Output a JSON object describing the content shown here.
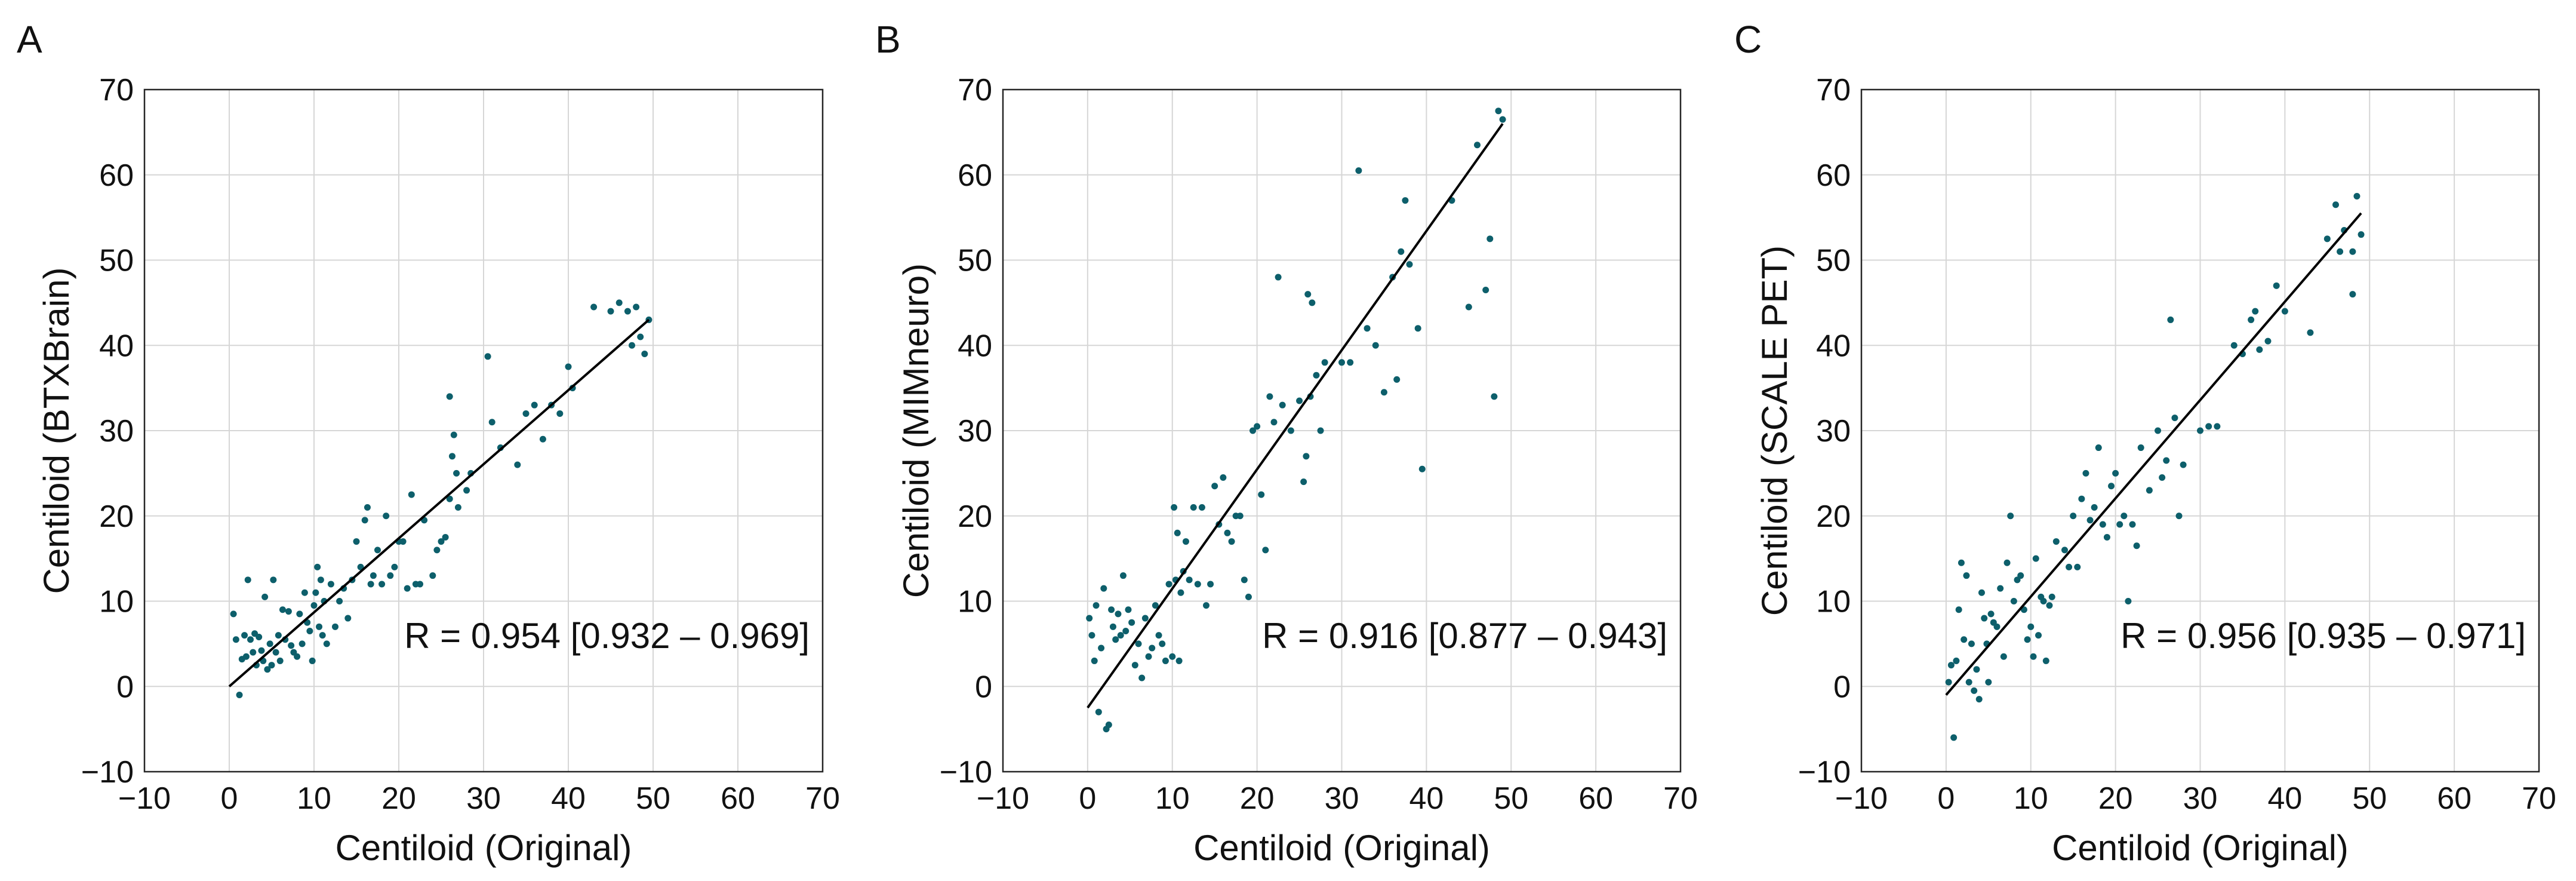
{
  "figure": {
    "panels": [
      {
        "letter": "A",
        "ylabel": "Centiloid (BTXBrain)",
        "xlabel": "Centiloid (Original)",
        "r_text": "R = 0.954 [0.932 – 0.969]"
      },
      {
        "letter": "B",
        "ylabel": "Centiloid (MIMneuro)",
        "xlabel": "Centiloid (Original)",
        "r_text": "R = 0.916 [0.877 – 0.943]"
      },
      {
        "letter": "C",
        "ylabel": "Centiloid (SCALE PET)",
        "xlabel": "Centiloid (Original)",
        "r_text": "R = 0.956 [0.935 – 0.971]"
      }
    ],
    "point_color": "#0d5f6b",
    "line_color": "#000000"
  },
  "chart_data": [
    {
      "type": "scatter",
      "panel": "A",
      "title": "",
      "xlabel": "Centiloid (Original)",
      "ylabel": "Centiloid (BTXBrain)",
      "xlim": [
        -10,
        70
      ],
      "ylim": [
        -10,
        70
      ],
      "xticks": [
        -10,
        0,
        10,
        20,
        30,
        40,
        50,
        60,
        70
      ],
      "yticks": [
        -10,
        0,
        10,
        20,
        30,
        40,
        50,
        60,
        70
      ],
      "xtick_labels": [
        "−10",
        "0",
        "10",
        "20",
        "30",
        "40",
        "50",
        "60",
        "70"
      ],
      "ytick_labels": [
        "−10",
        "0",
        "10",
        "20",
        "30",
        "40",
        "50",
        "60",
        "70"
      ],
      "grid": true,
      "annotation": "R = 0.954 [0.932 – 0.969]",
      "fit_line": {
        "x": [
          0,
          49.5
        ],
        "y": [
          0,
          43
        ]
      },
      "points": [
        [
          0.5,
          8.5
        ],
        [
          0.8,
          5.5
        ],
        [
          1.2,
          -1
        ],
        [
          1.5,
          3.2
        ],
        [
          1.8,
          6
        ],
        [
          2,
          3.5
        ],
        [
          2.2,
          12.5
        ],
        [
          2.5,
          5.5
        ],
        [
          2.8,
          4
        ],
        [
          3,
          6.2
        ],
        [
          3.2,
          2.5
        ],
        [
          3.5,
          5.8
        ],
        [
          3.8,
          4.2
        ],
        [
          4,
          3
        ],
        [
          4.2,
          10.5
        ],
        [
          4.5,
          2
        ],
        [
          4.8,
          5
        ],
        [
          5,
          2.5
        ],
        [
          5.2,
          12.5
        ],
        [
          5.5,
          4
        ],
        [
          5.8,
          6
        ],
        [
          6,
          3
        ],
        [
          6.3,
          9
        ],
        [
          6.6,
          5.5
        ],
        [
          7,
          8.8
        ],
        [
          7.3,
          4.8
        ],
        [
          7.6,
          4
        ],
        [
          8,
          3.5
        ],
        [
          8.3,
          8.5
        ],
        [
          8.6,
          5
        ],
        [
          8.9,
          11
        ],
        [
          9.2,
          7.5
        ],
        [
          9.5,
          6.5
        ],
        [
          9.8,
          3
        ],
        [
          10,
          9.5
        ],
        [
          10.2,
          11
        ],
        [
          10.4,
          14
        ],
        [
          10.6,
          7
        ],
        [
          10.8,
          12.5
        ],
        [
          11,
          6
        ],
        [
          11.2,
          10
        ],
        [
          11.5,
          5
        ],
        [
          12,
          12
        ],
        [
          12.5,
          7
        ],
        [
          13,
          10
        ],
        [
          13.5,
          11.5
        ],
        [
          14,
          8
        ],
        [
          14.5,
          12.5
        ],
        [
          15,
          17
        ],
        [
          15.5,
          14
        ],
        [
          16,
          19.5
        ],
        [
          16.3,
          21
        ],
        [
          16.7,
          12
        ],
        [
          17,
          13
        ],
        [
          17.5,
          16
        ],
        [
          18,
          12
        ],
        [
          18.5,
          20
        ],
        [
          19,
          13
        ],
        [
          19.5,
          14
        ],
        [
          20,
          17
        ],
        [
          20.5,
          17
        ],
        [
          21,
          11.5
        ],
        [
          21.5,
          22.5
        ],
        [
          22,
          12
        ],
        [
          22.5,
          12
        ],
        [
          23,
          19.5
        ],
        [
          24,
          13
        ],
        [
          24.5,
          16
        ],
        [
          25,
          17
        ],
        [
          25.5,
          17.5
        ],
        [
          26,
          22
        ],
        [
          26,
          34
        ],
        [
          26.3,
          27
        ],
        [
          26.5,
          29.5
        ],
        [
          26.8,
          25
        ],
        [
          27,
          21
        ],
        [
          28,
          23
        ],
        [
          28.5,
          25
        ],
        [
          30.5,
          38.7
        ],
        [
          31,
          31
        ],
        [
          32,
          28
        ],
        [
          34,
          26
        ],
        [
          35,
          32
        ],
        [
          36,
          33
        ],
        [
          37,
          29
        ],
        [
          38,
          33
        ],
        [
          39,
          32
        ],
        [
          40,
          37.5
        ],
        [
          40.5,
          35
        ],
        [
          43,
          44.5
        ],
        [
          45,
          44
        ],
        [
          46,
          45
        ],
        [
          47,
          44
        ],
        [
          47.5,
          40
        ],
        [
          48,
          44.5
        ],
        [
          48.5,
          41
        ],
        [
          49,
          39
        ],
        [
          49.5,
          43
        ]
      ]
    },
    {
      "type": "scatter",
      "panel": "B",
      "title": "",
      "xlabel": "Centiloid (Original)",
      "ylabel": "Centiloid (MIMneuro)",
      "xlim": [
        -10,
        70
      ],
      "ylim": [
        -10,
        70
      ],
      "xticks": [
        -10,
        0,
        10,
        20,
        30,
        40,
        50,
        60,
        70
      ],
      "yticks": [
        -10,
        0,
        10,
        20,
        30,
        40,
        50,
        60,
        70
      ],
      "xtick_labels": [
        "−10",
        "0",
        "10",
        "20",
        "30",
        "40",
        "50",
        "60",
        "70"
      ],
      "ytick_labels": [
        "−10",
        "0",
        "10",
        "20",
        "30",
        "40",
        "50",
        "60",
        "70"
      ],
      "grid": true,
      "annotation": "R = 0.916 [0.877 – 0.943]",
      "fit_line": {
        "x": [
          0,
          49
        ],
        "y": [
          -2.5,
          66
        ]
      },
      "points": [
        [
          0.2,
          8
        ],
        [
          0.5,
          6
        ],
        [
          0.8,
          3
        ],
        [
          1,
          9.5
        ],
        [
          1.3,
          -3
        ],
        [
          1.6,
          4.5
        ],
        [
          1.9,
          11.5
        ],
        [
          2.2,
          -5
        ],
        [
          2.5,
          -4.5
        ],
        [
          2.8,
          9
        ],
        [
          3,
          7
        ],
        [
          3.3,
          5.5
        ],
        [
          3.6,
          8.5
        ],
        [
          3.9,
          6
        ],
        [
          4.2,
          13
        ],
        [
          4.5,
          6.5
        ],
        [
          4.8,
          9
        ],
        [
          5.2,
          7.5
        ],
        [
          5.6,
          2.5
        ],
        [
          6,
          5
        ],
        [
          6.4,
          1
        ],
        [
          6.8,
          8
        ],
        [
          7.2,
          3.5
        ],
        [
          7.6,
          4.5
        ],
        [
          8,
          9.5
        ],
        [
          8.4,
          6
        ],
        [
          8.8,
          5
        ],
        [
          9.2,
          3
        ],
        [
          9.6,
          12
        ],
        [
          10,
          3.5
        ],
        [
          10.2,
          21
        ],
        [
          10.4,
          12.5
        ],
        [
          10.6,
          18
        ],
        [
          10.8,
          3
        ],
        [
          11,
          11
        ],
        [
          11.3,
          13.5
        ],
        [
          11.6,
          17
        ],
        [
          12,
          12.5
        ],
        [
          12.5,
          21
        ],
        [
          13,
          12
        ],
        [
          13.5,
          21
        ],
        [
          14,
          9.5
        ],
        [
          14.5,
          12
        ],
        [
          15,
          23.5
        ],
        [
          15.5,
          19
        ],
        [
          16,
          24.5
        ],
        [
          16.5,
          18
        ],
        [
          17,
          17
        ],
        [
          17.5,
          20
        ],
        [
          18,
          20
        ],
        [
          18.5,
          12.5
        ],
        [
          19,
          10.5
        ],
        [
          19.5,
          30
        ],
        [
          20,
          30.5
        ],
        [
          20.5,
          22.5
        ],
        [
          21,
          16
        ],
        [
          21.5,
          34
        ],
        [
          22,
          31
        ],
        [
          22.5,
          48
        ],
        [
          23,
          33
        ],
        [
          24,
          30
        ],
        [
          25,
          33.5
        ],
        [
          25.5,
          24
        ],
        [
          25.8,
          27
        ],
        [
          26,
          46
        ],
        [
          26.3,
          34
        ],
        [
          26.5,
          45
        ],
        [
          27,
          36.5
        ],
        [
          27.5,
          30
        ],
        [
          28,
          38
        ],
        [
          30,
          38
        ],
        [
          31,
          38
        ],
        [
          32,
          60.5
        ],
        [
          33,
          42
        ],
        [
          34,
          40
        ],
        [
          35,
          34.5
        ],
        [
          36,
          48
        ],
        [
          36.5,
          36
        ],
        [
          37,
          51
        ],
        [
          37.5,
          57
        ],
        [
          38,
          49.5
        ],
        [
          39,
          42
        ],
        [
          39.5,
          25.5
        ],
        [
          43,
          57
        ],
        [
          45,
          44.5
        ],
        [
          46,
          63.5
        ],
        [
          47,
          46.5
        ],
        [
          47.5,
          52.5
        ],
        [
          48,
          34
        ],
        [
          48.5,
          67.5
        ],
        [
          49,
          66.5
        ]
      ]
    },
    {
      "type": "scatter",
      "panel": "C",
      "title": "",
      "xlabel": "Centiloid (Original)",
      "ylabel": "Centiloid (SCALE PET)",
      "xlim": [
        -10,
        70
      ],
      "ylim": [
        -10,
        70
      ],
      "xticks": [
        -10,
        0,
        10,
        20,
        30,
        40,
        50,
        60,
        70
      ],
      "yticks": [
        -10,
        0,
        10,
        20,
        30,
        40,
        50,
        60,
        70
      ],
      "xtick_labels": [
        "−10",
        "0",
        "10",
        "20",
        "30",
        "40",
        "50",
        "60",
        "70"
      ],
      "ytick_labels": [
        "−10",
        "0",
        "10",
        "20",
        "30",
        "40",
        "50",
        "60",
        "70"
      ],
      "grid": true,
      "annotation": "R = 0.956 [0.935 – 0.971]",
      "fit_line": {
        "x": [
          0,
          49
        ],
        "y": [
          -1,
          55.5
        ]
      },
      "points": [
        [
          0.3,
          0.5
        ],
        [
          0.6,
          2.5
        ],
        [
          0.9,
          -6
        ],
        [
          1.2,
          3
        ],
        [
          1.5,
          9
        ],
        [
          1.8,
          14.5
        ],
        [
          2.1,
          5.5
        ],
        [
          2.4,
          13
        ],
        [
          2.7,
          0.5
        ],
        [
          3,
          5
        ],
        [
          3.3,
          -0.5
        ],
        [
          3.6,
          2
        ],
        [
          3.9,
          -1.5
        ],
        [
          4.2,
          11
        ],
        [
          4.5,
          8
        ],
        [
          4.8,
          5
        ],
        [
          5,
          0.5
        ],
        [
          5.3,
          8.5
        ],
        [
          5.6,
          7.5
        ],
        [
          6,
          7
        ],
        [
          6.4,
          11.5
        ],
        [
          6.8,
          3.5
        ],
        [
          7.2,
          14.5
        ],
        [
          7.6,
          20
        ],
        [
          8,
          10
        ],
        [
          8.4,
          12.5
        ],
        [
          8.8,
          13
        ],
        [
          9.2,
          9
        ],
        [
          9.6,
          5.5
        ],
        [
          10,
          7
        ],
        [
          10.3,
          3.5
        ],
        [
          10.6,
          15
        ],
        [
          10.9,
          6
        ],
        [
          11.2,
          10.5
        ],
        [
          11.5,
          10
        ],
        [
          11.8,
          3
        ],
        [
          12.2,
          9.5
        ],
        [
          12.5,
          10.5
        ],
        [
          13,
          17
        ],
        [
          14,
          16
        ],
        [
          14.5,
          14
        ],
        [
          15,
          20
        ],
        [
          15.5,
          14
        ],
        [
          16,
          22
        ],
        [
          16.5,
          25
        ],
        [
          17,
          19.5
        ],
        [
          17.5,
          21
        ],
        [
          18,
          28
        ],
        [
          18.5,
          19
        ],
        [
          19,
          17.5
        ],
        [
          19.5,
          23.5
        ],
        [
          20,
          25
        ],
        [
          20.5,
          19
        ],
        [
          21,
          20
        ],
        [
          21.5,
          10
        ],
        [
          22,
          19
        ],
        [
          22.5,
          16.5
        ],
        [
          23,
          28
        ],
        [
          24,
          23
        ],
        [
          25,
          30
        ],
        [
          25.5,
          24.5
        ],
        [
          26,
          26.5
        ],
        [
          26.5,
          43
        ],
        [
          27,
          31.5
        ],
        [
          27.5,
          20
        ],
        [
          28,
          26
        ],
        [
          30,
          30
        ],
        [
          31,
          30.5
        ],
        [
          32,
          30.5
        ],
        [
          34,
          40
        ],
        [
          35,
          39
        ],
        [
          36,
          43
        ],
        [
          36.5,
          44
        ],
        [
          37,
          39.5
        ],
        [
          38,
          40.5
        ],
        [
          39,
          47
        ],
        [
          40,
          44
        ],
        [
          43,
          41.5
        ],
        [
          45,
          52.5
        ],
        [
          46,
          56.5
        ],
        [
          46.5,
          51
        ],
        [
          47,
          53.5
        ],
        [
          48,
          46
        ],
        [
          48,
          51
        ],
        [
          48.5,
          57.5
        ],
        [
          49,
          53
        ]
      ]
    }
  ]
}
